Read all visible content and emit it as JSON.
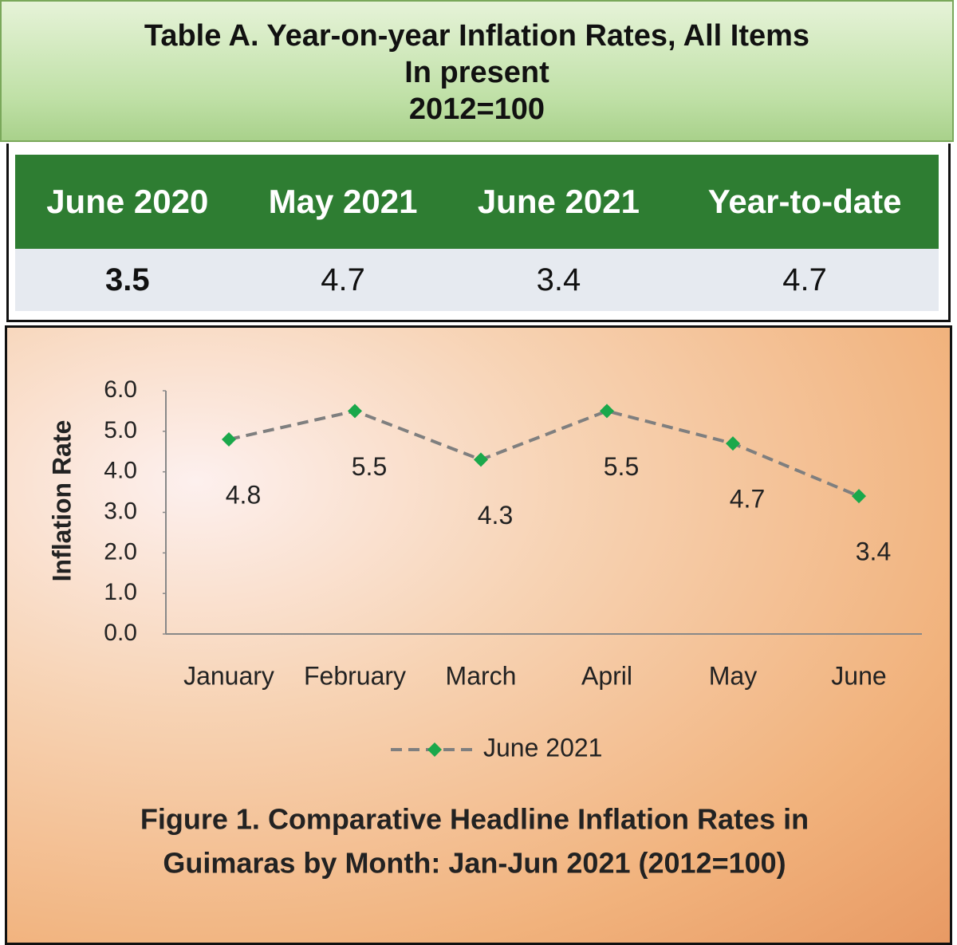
{
  "table": {
    "title": [
      "Table A.  Year-on-year  Inflation Rates, All Items",
      "In present",
      "2012=100"
    ],
    "headers": [
      "June 2020",
      "May 2021",
      "June 2021",
      "Year-to-date"
    ],
    "rows": [
      [
        3.5,
        4.7,
        3.4,
        4.7
      ]
    ]
  },
  "chart_data": {
    "type": "line",
    "ylabel": "Inflation Rate",
    "categories": [
      "January",
      "February",
      "March",
      "April",
      "May",
      "June"
    ],
    "series": [
      {
        "name": "June 2021",
        "color": "#7f7f7f",
        "marker_color": "#1aa84b",
        "values": [
          4.8,
          5.5,
          4.3,
          5.5,
          4.7,
          3.4
        ]
      }
    ],
    "ylim": [
      0,
      6
    ],
    "yticks": [
      {
        "value": 0,
        "label": "0.0"
      },
      {
        "value": 1,
        "label": "1.0"
      },
      {
        "value": 2,
        "label": "2.0"
      },
      {
        "value": 3,
        "label": "3.0"
      },
      {
        "value": 4,
        "label": "4.0"
      },
      {
        "value": 5,
        "label": "5.0"
      },
      {
        "value": 6,
        "label": "6.0"
      }
    ],
    "caption": [
      "Figure 1. Comparative Headline Inflation Rates in",
      "Guimaras by Month: Jan-Jun 2021  (2012=100)"
    ]
  }
}
